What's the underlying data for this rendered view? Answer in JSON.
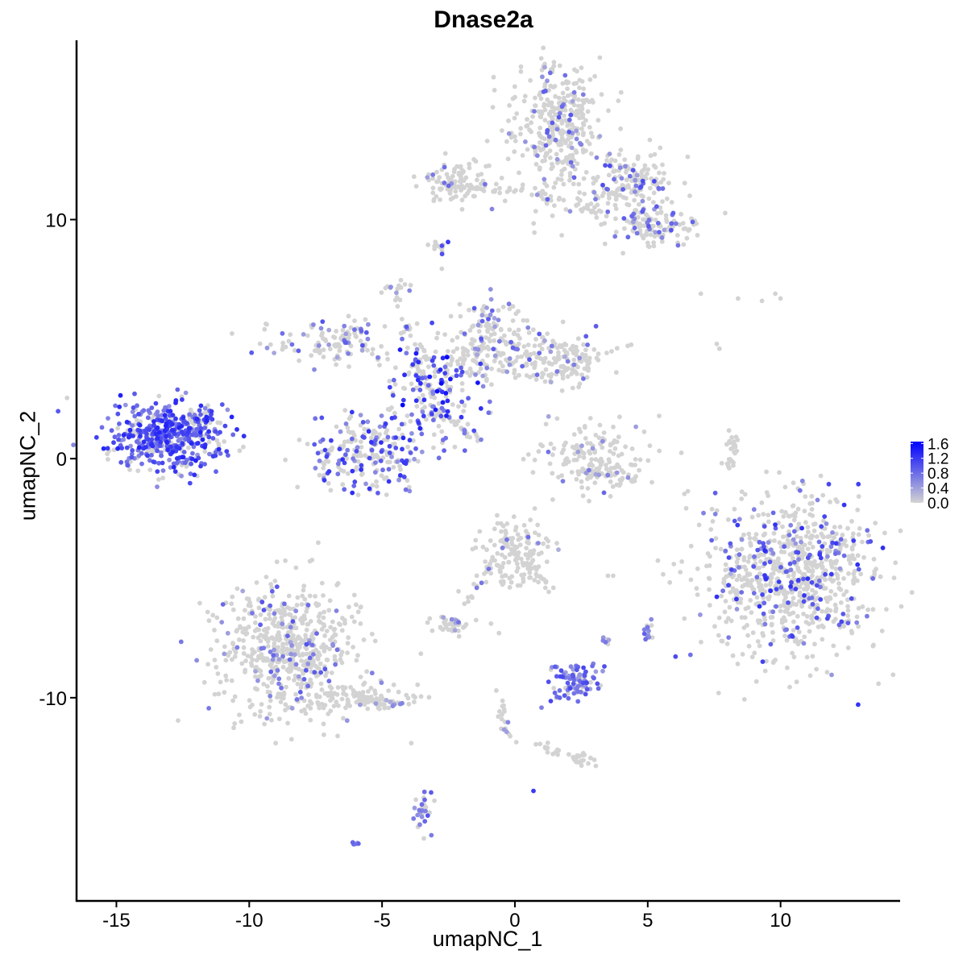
{
  "chart_data": {
    "type": "scatter",
    "title": "Dnase2a",
    "xlabel": "umapNC_1",
    "ylabel": "umapNC_2",
    "xlim": [
      -16.5,
      14.5
    ],
    "ylim": [
      -18.5,
      17.5
    ],
    "xticks": [
      -15,
      -10,
      -5,
      0,
      5,
      10
    ],
    "xtick_labels": [
      "-15",
      "-10",
      "-5",
      "0",
      "5",
      "10"
    ],
    "yticks": [
      -10,
      0,
      10
    ],
    "ytick_labels": [
      "-10",
      "0",
      "10"
    ],
    "grid": false,
    "legend": {
      "placement": "right",
      "type": "colorbar",
      "min": 0.0,
      "max": 1.65,
      "ticks": [
        0.0,
        0.4,
        0.8,
        1.2,
        1.6
      ],
      "tick_labels": [
        "0.0",
        "0.4",
        "0.8",
        "1.2",
        "1.6"
      ],
      "low_color": "#d3d3d3",
      "high_color": "#0000ff"
    },
    "clusters": [
      {
        "cx": -13.0,
        "cy": 1.0,
        "sx": 1.0,
        "sy": 0.7,
        "n": 520,
        "frac": 0.75,
        "vmax": 1.4
      },
      {
        "cx": -8.5,
        "cy": -8.0,
        "sx": 1.3,
        "sy": 1.4,
        "n": 600,
        "frac": 0.14,
        "vmax": 1.0
      },
      {
        "cx": -5.8,
        "cy": -10.0,
        "sx": 1.3,
        "sy": 0.3,
        "n": 90,
        "frac": 0.1,
        "vmax": 0.8
      },
      {
        "cx": -3.2,
        "cy": 2.8,
        "sx": 0.9,
        "sy": 1.0,
        "n": 180,
        "frac": 0.45,
        "vmax": 1.65
      },
      {
        "cx": -5.5,
        "cy": 0.2,
        "sx": 1.0,
        "sy": 0.8,
        "n": 220,
        "frac": 0.45,
        "vmax": 1.3
      },
      {
        "cx": -6.8,
        "cy": 5.0,
        "sx": 1.2,
        "sy": 0.5,
        "n": 120,
        "frac": 0.25,
        "vmax": 1.0
      },
      {
        "cx": -0.5,
        "cy": 4.4,
        "sx": 1.7,
        "sy": 0.6,
        "n": 220,
        "frac": 0.18,
        "vmax": 1.0
      },
      {
        "cx": 1.8,
        "cy": 4.0,
        "sx": 0.8,
        "sy": 0.5,
        "n": 90,
        "frac": 0.12,
        "vmax": 0.8
      },
      {
        "cx": -1.0,
        "cy": 5.8,
        "sx": 0.5,
        "sy": 0.5,
        "n": 50,
        "frac": 0.35,
        "vmax": 1.0
      },
      {
        "cx": -4.4,
        "cy": 7.2,
        "sx": 0.2,
        "sy": 0.3,
        "n": 12,
        "frac": 0.4,
        "vmax": 0.9
      },
      {
        "cx": 1.6,
        "cy": 13.8,
        "sx": 0.8,
        "sy": 1.3,
        "n": 360,
        "frac": 0.1,
        "vmax": 1.0
      },
      {
        "cx": 4.3,
        "cy": 11.5,
        "sx": 0.9,
        "sy": 0.7,
        "n": 180,
        "frac": 0.2,
        "vmax": 1.1
      },
      {
        "cx": 5.2,
        "cy": 9.7,
        "sx": 0.8,
        "sy": 0.4,
        "n": 110,
        "frac": 0.2,
        "vmax": 1.0
      },
      {
        "cx": -2.2,
        "cy": 11.6,
        "sx": 0.6,
        "sy": 0.4,
        "n": 90,
        "frac": 0.05,
        "vmax": 0.8
      },
      {
        "cx": 3.0,
        "cy": 0.0,
        "sx": 1.0,
        "sy": 0.7,
        "n": 150,
        "frac": 0.1,
        "vmax": 1.0
      },
      {
        "cx": 10.5,
        "cy": -4.8,
        "sx": 1.6,
        "sy": 1.7,
        "n": 800,
        "frac": 0.18,
        "vmax": 1.3
      },
      {
        "cx": 8.2,
        "cy": -4.8,
        "sx": 0.3,
        "sy": 0.5,
        "n": 25,
        "frac": 0.1,
        "vmax": 0.8
      },
      {
        "cx": 0.0,
        "cy": -4.0,
        "sx": 0.6,
        "sy": 0.7,
        "n": 150,
        "frac": 0.08,
        "vmax": 0.8
      },
      {
        "cx": -2.5,
        "cy": -6.9,
        "sx": 0.35,
        "sy": 0.2,
        "n": 40,
        "frac": 0.08,
        "vmax": 0.8
      },
      {
        "cx": 2.3,
        "cy": -9.3,
        "sx": 0.45,
        "sy": 0.4,
        "n": 90,
        "frac": 0.8,
        "vmax": 1.1
      },
      {
        "cx": 3.4,
        "cy": -7.6,
        "sx": 0.1,
        "sy": 0.1,
        "n": 8,
        "frac": 0.5,
        "vmax": 0.9
      },
      {
        "cx": 5.0,
        "cy": -7.3,
        "sx": 0.12,
        "sy": 0.25,
        "n": 12,
        "frac": 0.5,
        "vmax": 0.9
      },
      {
        "cx": 2.4,
        "cy": -12.6,
        "sx": 0.3,
        "sy": 0.15,
        "n": 25,
        "frac": 0.0,
        "vmax": 0.5
      },
      {
        "cx": -3.5,
        "cy": -14.7,
        "sx": 0.2,
        "sy": 0.6,
        "n": 30,
        "frac": 0.55,
        "vmax": 1.0
      },
      {
        "cx": -6.0,
        "cy": -16.1,
        "sx": 0.1,
        "sy": 0.05,
        "n": 5,
        "frac": 0.8,
        "vmax": 0.9
      },
      {
        "cx": -2.9,
        "cy": 8.8,
        "sx": 0.15,
        "sy": 0.25,
        "n": 10,
        "frac": 0.4,
        "vmax": 1.5
      }
    ],
    "arcs": [
      {
        "x0": 8.0,
        "y0": -0.4,
        "x1": 8.3,
        "y1": 1.0,
        "n": 28,
        "frac": 0.0,
        "vmax": 0.5
      },
      {
        "x0": 2.5,
        "y0": -0.5,
        "x1": 4.5,
        "y1": -0.9,
        "n": 40,
        "frac": 0.05,
        "vmax": 0.6
      },
      {
        "x0": -3.2,
        "y0": 2.5,
        "x1": -4.5,
        "y1": 7.0,
        "n": 30,
        "frac": 0.2,
        "vmax": 1.0
      },
      {
        "x0": -3.0,
        "y0": 2.2,
        "x1": -1.3,
        "y1": 0.7,
        "n": 25,
        "frac": 0.25,
        "vmax": 1.1
      },
      {
        "x0": -3.0,
        "y0": 11.5,
        "x1": 0.8,
        "y1": 11.1,
        "n": 35,
        "frac": 0.1,
        "vmax": 0.9
      },
      {
        "x0": 0.8,
        "y0": 11.0,
        "x1": 3.5,
        "y1": 10.3,
        "n": 30,
        "frac": 0.1,
        "vmax": 0.9
      },
      {
        "x0": -0.8,
        "y0": -4.5,
        "x1": -1.8,
        "y1": -6.2,
        "n": 15,
        "frac": 0.2,
        "vmax": 0.9
      },
      {
        "x0": 0.6,
        "y0": -4.5,
        "x1": 1.3,
        "y1": -5.5,
        "n": 15,
        "frac": 0.1,
        "vmax": 0.8
      },
      {
        "x0": -6.2,
        "y0": -9.8,
        "x1": -4.2,
        "y1": -10.4,
        "n": 30,
        "frac": 0.08,
        "vmax": 0.8
      },
      {
        "x0": -0.5,
        "y0": -10.2,
        "x1": -0.2,
        "y1": -12.0,
        "n": 18,
        "frac": 0.08,
        "vmax": 0.9
      },
      {
        "x0": 0.3,
        "y0": -11.8,
        "x1": 2.0,
        "y1": -12.3,
        "n": 15,
        "frac": 0.0,
        "vmax": 0.5
      },
      {
        "x0": -3.0,
        "y0": 8.6,
        "x1": -2.9,
        "y1": 9.2,
        "n": 6,
        "frac": 0.2,
        "vmax": 0.9
      }
    ],
    "stray_points": [
      {
        "x": 7.0,
        "y": 6.9,
        "v": 0
      },
      {
        "x": 8.4,
        "y": 6.7,
        "v": 0
      },
      {
        "x": 9.3,
        "y": 6.6,
        "v": 0
      },
      {
        "x": 9.8,
        "y": 6.9,
        "v": 0
      },
      {
        "x": 10.0,
        "y": 6.7,
        "v": 0
      },
      {
        "x": 7.6,
        "y": 4.8,
        "v": 0
      },
      {
        "x": 7.7,
        "y": 4.6,
        "v": 0
      },
      {
        "x": 3.5,
        "y": -4.9,
        "v": 0
      },
      {
        "x": 3.7,
        "y": -4.9,
        "v": 0
      },
      {
        "x": -0.9,
        "y": -6.9,
        "v": 0
      },
      {
        "x": -0.6,
        "y": -7.3,
        "v": 0
      },
      {
        "x": 0.7,
        "y": -13.9,
        "v": 1.2
      },
      {
        "x": -3.9,
        "y": -11.9,
        "v": 0
      },
      {
        "x": -0.7,
        "y": -9.7,
        "v": 0
      },
      {
        "x": 2.6,
        "y": -9.8,
        "v": 0
      }
    ]
  }
}
